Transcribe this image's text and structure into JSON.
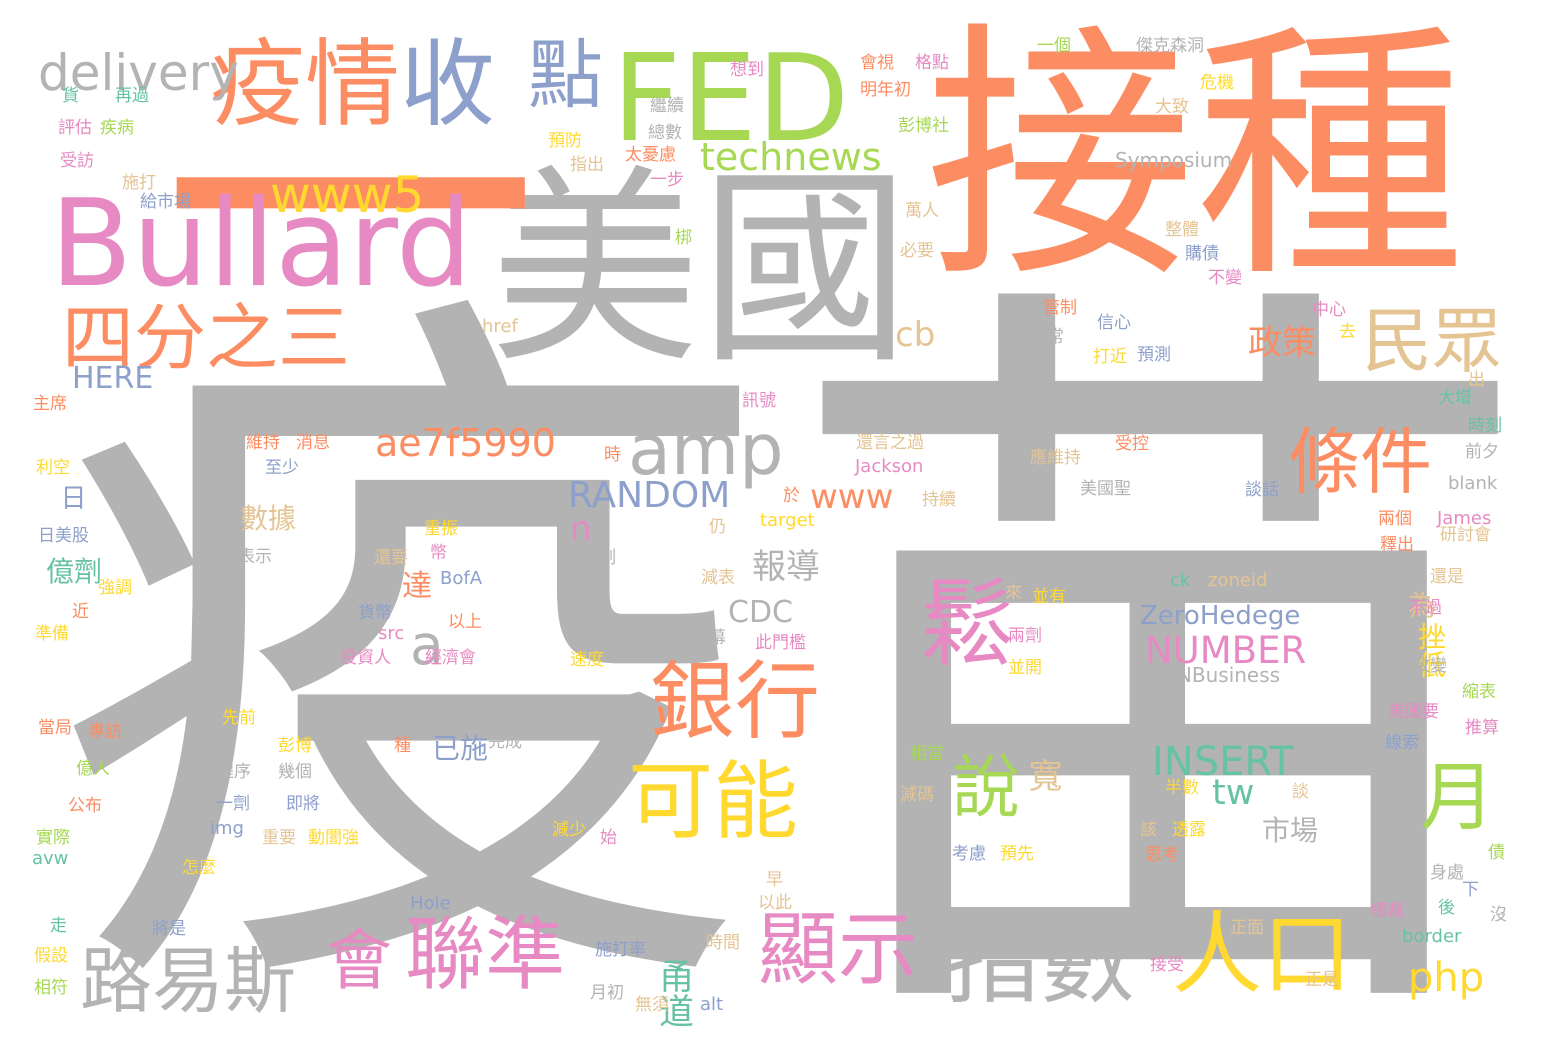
{
  "palette": [
    "#b3b3b3",
    "#fc8d62",
    "#e78ac3",
    "#8da0cb",
    "#a6d854",
    "#ffd92f",
    "#e5c494",
    "#66c2a5"
  ],
  "words": [
    {
      "text": "疫",
      "c": 0
    },
    {
      "text": "苗",
      "c": 0
    },
    {
      "text": "接種",
      "c": 1
    },
    {
      "text": "美國",
      "c": 0
    },
    {
      "text": "一",
      "c": 1
    },
    {
      "text": "Bullard",
      "c": 2
    },
    {
      "text": "FED",
      "c": 4
    },
    {
      "text": "疫情",
      "c": 1
    },
    {
      "text": "收",
      "c": 3
    },
    {
      "text": "點",
      "c": 3
    },
    {
      "text": "delivery",
      "c": 0
    },
    {
      "text": "www5",
      "c": 5
    },
    {
      "text": "technews",
      "c": 4
    },
    {
      "text": "四分之三",
      "c": 1
    },
    {
      "text": "民眾",
      "c": 6
    },
    {
      "text": "amp",
      "c": 0
    },
    {
      "text": "條件",
      "c": 1
    },
    {
      "text": "ae7f5990",
      "c": 1
    },
    {
      "text": "RANDOM",
      "c": 3
    },
    {
      "text": "www",
      "c": 1
    },
    {
      "text": "鬆",
      "c": 2
    },
    {
      "text": "銀行",
      "c": 1
    },
    {
      "text": "可能",
      "c": 5
    },
    {
      "text": "月",
      "c": 4
    },
    {
      "text": "說",
      "c": 4
    },
    {
      "text": "顯示",
      "c": 2
    },
    {
      "text": "指數",
      "c": 0
    },
    {
      "text": "人口",
      "c": 5
    },
    {
      "text": "聯準",
      "c": 2
    },
    {
      "text": "會",
      "c": 2
    },
    {
      "text": "路易斯",
      "c": 0
    },
    {
      "text": "php",
      "c": 5
    },
    {
      "text": "INSERT",
      "c": 7
    },
    {
      "text": "NUMBER",
      "c": 2
    },
    {
      "text": "ZeroHedege",
      "c": 3
    },
    {
      "text": "CNNBusiness",
      "c": 0
    },
    {
      "text": "CDC",
      "c": 0
    },
    {
      "text": "報導",
      "c": 0
    },
    {
      "text": "tw",
      "c": 7
    },
    {
      "text": "n",
      "c": 2
    },
    {
      "text": "a",
      "c": 0
    },
    {
      "text": "cb",
      "c": 6
    },
    {
      "text": "HERE",
      "c": 3
    },
    {
      "text": "政策",
      "c": 1
    },
    {
      "text": "市場",
      "c": 0
    },
    {
      "text": "寬",
      "c": 6
    },
    {
      "text": "甬道",
      "c": 7
    },
    {
      "text": "億劑",
      "c": 7
    },
    {
      "text": "數據",
      "c": 6
    },
    {
      "text": "日",
      "c": 3
    },
    {
      "text": "已施",
      "c": 3
    },
    {
      "text": "挫低",
      "c": 5
    },
    {
      "text": "為",
      "c": 6
    },
    {
      "text": "達",
      "c": 1
    },
    {
      "text": "Symposium",
      "c": 0
    },
    {
      "text": "Jackson",
      "c": 2
    },
    {
      "text": "target",
      "c": 5
    },
    {
      "text": "James",
      "c": 2
    },
    {
      "text": "blank",
      "c": 0
    },
    {
      "text": "zoneid",
      "c": 6
    },
    {
      "text": "ck",
      "c": 7
    },
    {
      "text": "BofA",
      "c": 3
    },
    {
      "text": "Hole",
      "c": 3
    },
    {
      "text": "href",
      "c": 6
    },
    {
      "text": "src",
      "c": 2
    },
    {
      "text": "img",
      "c": 3
    },
    {
      "text": "avw",
      "c": 7
    },
    {
      "text": "alt",
      "c": 3
    },
    {
      "text": "border",
      "c": 7
    },
    {
      "text": "傑克森洞",
      "c": 0
    },
    {
      "text": "一個",
      "c": 4
    },
    {
      "text": "會視",
      "c": 1
    },
    {
      "text": "格點",
      "c": 2
    },
    {
      "text": "想到",
      "c": 2
    },
    {
      "text": "危機",
      "c": 5
    },
    {
      "text": "大致",
      "c": 6
    },
    {
      "text": "彭博社",
      "c": 4
    },
    {
      "text": "明年初",
      "c": 1
    },
    {
      "text": "繼續",
      "c": 0
    },
    {
      "text": "總數",
      "c": 0
    },
    {
      "text": "太憂慮",
      "c": 1
    },
    {
      "text": "預防",
      "c": 5
    },
    {
      "text": "指出",
      "c": 6
    },
    {
      "text": "一步",
      "c": 2
    },
    {
      "text": "貨",
      "c": 7
    },
    {
      "text": "再過",
      "c": 7
    },
    {
      "text": "評估",
      "c": 2
    },
    {
      "text": "疾病",
      "c": 4
    },
    {
      "text": "受訪",
      "c": 2
    },
    {
      "text": "施打",
      "c": 6
    },
    {
      "text": "給市場",
      "c": 3
    },
    {
      "text": "萬人",
      "c": 6
    },
    {
      "text": "整體",
      "c": 6
    },
    {
      "text": "購債",
      "c": 3
    },
    {
      "text": "必要",
      "c": 6
    },
    {
      "text": "不變",
      "c": 2
    },
    {
      "text": "中心",
      "c": 2
    },
    {
      "text": "信心",
      "c": 3
    },
    {
      "text": "管制",
      "c": 1
    },
    {
      "text": "非常",
      "c": 0
    },
    {
      "text": "打近",
      "c": 5
    },
    {
      "text": "預測",
      "c": 3
    },
    {
      "text": "出",
      "c": 6
    },
    {
      "text": "大增",
      "c": 7
    },
    {
      "text": "時刻",
      "c": 7
    },
    {
      "text": "主席",
      "c": 1
    },
    {
      "text": "利空",
      "c": 5
    },
    {
      "text": "訊號",
      "c": 2
    },
    {
      "text": "維持",
      "c": 1
    },
    {
      "text": "消息",
      "c": 1
    },
    {
      "text": "至少",
      "c": 3
    },
    {
      "text": "還言之過",
      "c": 6
    },
    {
      "text": "受控",
      "c": 1
    },
    {
      "text": "應維持",
      "c": 6
    },
    {
      "text": "美國聖",
      "c": 0
    },
    {
      "text": "談話",
      "c": 3
    },
    {
      "text": "前夕",
      "c": 0
    },
    {
      "text": "於",
      "c": 1
    },
    {
      "text": "持續",
      "c": 6
    },
    {
      "text": "仍",
      "c": 6
    },
    {
      "text": "兩個",
      "c": 1
    },
    {
      "text": "釋出",
      "c": 1
    },
    {
      "text": "研討會",
      "c": 6
    },
    {
      "text": "還是",
      "c": 6
    },
    {
      "text": "日美股",
      "c": 3
    },
    {
      "text": "表示",
      "c": 0
    },
    {
      "text": "強調",
      "c": 5
    },
    {
      "text": "還要",
      "c": 6
    },
    {
      "text": "重振",
      "c": 5
    },
    {
      "text": "幣",
      "c": 2
    },
    {
      "text": "限制",
      "c": 0
    },
    {
      "text": "減表",
      "c": 6
    },
    {
      "text": "來",
      "c": 6
    },
    {
      "text": "並有",
      "c": 5
    },
    {
      "text": "不過",
      "c": 2
    },
    {
      "text": "近",
      "c": 1
    },
    {
      "text": "準備",
      "c": 5
    },
    {
      "text": "以上",
      "c": 1
    },
    {
      "text": "貨幣",
      "c": 3
    },
    {
      "text": "落幕",
      "c": 0
    },
    {
      "text": "此門檻",
      "c": 2
    },
    {
      "text": "兩劑",
      "c": 2
    },
    {
      "text": "改變",
      "c": 0
    },
    {
      "text": "投資人",
      "c": 2
    },
    {
      "text": "經濟會",
      "c": 2
    },
    {
      "text": "速度",
      "c": 5
    },
    {
      "text": "並開",
      "c": 5
    },
    {
      "text": "縮表",
      "c": 4
    },
    {
      "text": "當局",
      "c": 1
    },
    {
      "text": "專訪",
      "c": 1
    },
    {
      "text": "先前",
      "c": 5
    },
    {
      "text": "美國要",
      "c": 2
    },
    {
      "text": "推算",
      "c": 2
    },
    {
      "text": "彭博",
      "c": 5
    },
    {
      "text": "種",
      "c": 1
    },
    {
      "text": "完成",
      "c": 0
    },
    {
      "text": "相當",
      "c": 4
    },
    {
      "text": "線索",
      "c": 3
    },
    {
      "text": "億人",
      "c": 4
    },
    {
      "text": "程序",
      "c": 0
    },
    {
      "text": "幾個",
      "c": 0
    },
    {
      "text": "一劑",
      "c": 3
    },
    {
      "text": "即將",
      "c": 3
    },
    {
      "text": "減碼",
      "c": 6
    },
    {
      "text": "半數",
      "c": 5
    },
    {
      "text": "談",
      "c": 6
    },
    {
      "text": "公布",
      "c": 1
    },
    {
      "text": "實際",
      "c": 4
    },
    {
      "text": "重要",
      "c": 6
    },
    {
      "text": "動闇強",
      "c": 5
    },
    {
      "text": "減少",
      "c": 5
    },
    {
      "text": "始",
      "c": 2
    },
    {
      "text": "考慮",
      "c": 3
    },
    {
      "text": "預先",
      "c": 5
    },
    {
      "text": "該",
      "c": 6
    },
    {
      "text": "透露",
      "c": 5
    },
    {
      "text": "思考",
      "c": 1
    },
    {
      "text": "債",
      "c": 4
    },
    {
      "text": "怎麼",
      "c": 5
    },
    {
      "text": "早",
      "c": 6
    },
    {
      "text": "以此",
      "c": 6
    },
    {
      "text": "身處",
      "c": 0
    },
    {
      "text": "下",
      "c": 3
    },
    {
      "text": "走",
      "c": 7
    },
    {
      "text": "將是",
      "c": 3
    },
    {
      "text": "正面",
      "c": 6
    },
    {
      "text": "總裁",
      "c": 2
    },
    {
      "text": "後",
      "c": 7
    },
    {
      "text": "沒",
      "c": 0
    },
    {
      "text": "假設",
      "c": 5
    },
    {
      "text": "時間",
      "c": 6
    },
    {
      "text": "施打率",
      "c": 3
    },
    {
      "text": "接受",
      "c": 2
    },
    {
      "text": "正是",
      "c": 6
    },
    {
      "text": "相符",
      "c": 4
    },
    {
      "text": "月初",
      "c": 0
    },
    {
      "text": "無須",
      "c": 6
    },
    {
      "text": "時",
      "c": 1
    },
    {
      "text": "梆",
      "c": 4
    },
    {
      "text": "去",
      "c": 5
    }
  ]
}
